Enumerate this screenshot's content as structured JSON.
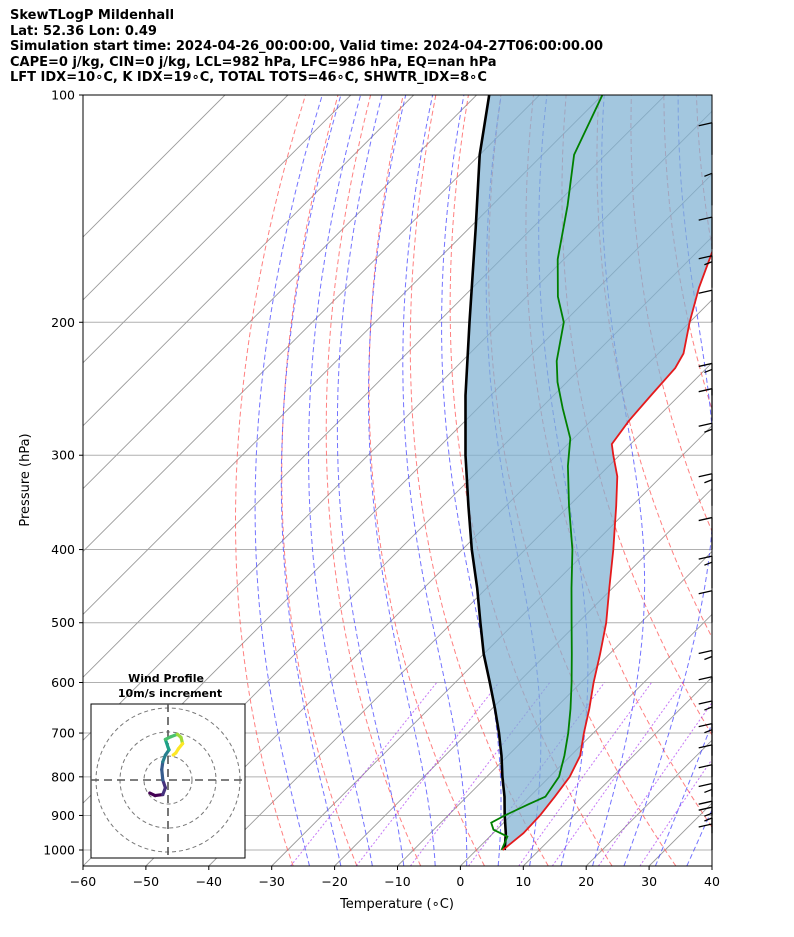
{
  "title": {
    "line1": "SkewTLogP Mildenhall",
    "line2": "Lat: 52.36   Lon: 0.49",
    "line3": "Simulation start time: 2024-04-26_00:00:00, Valid time: 2024-04-27T06:00:00.00",
    "line4": "CAPE=0 j/kg, CIN=0 j/kg, LCL=982 hPa, LFC=986 hPa, EQ=nan hPa",
    "line5": "LFT IDX=10∘C, K IDX=19∘C, TOTAL TOTS=46∘C, SHWTR_IDX=8∘C"
  },
  "colors": {
    "temperature": "#e41a1c",
    "dewpoint": "#008000",
    "parcel": "#000000",
    "shade": "#7fb1d3",
    "dry_adiabat": "#ff5555",
    "moist_adiabat": "#4444ff",
    "mixing_ratio": "#a020f0",
    "isotherm": "#9a9a9a"
  },
  "chart_data": {
    "type": "skew-t log-p",
    "title": "SkewTLogP Mildenhall",
    "xlabel": "Temperature (∘C)",
    "ylabel": "Pressure (hPa)",
    "xlim": [
      -60,
      40
    ],
    "ylim": [
      1050,
      100
    ],
    "x_ticks": [
      -60,
      -50,
      -40,
      -30,
      -20,
      -10,
      0,
      10,
      20,
      30,
      40
    ],
    "x_tick_labels": [
      "−60",
      "−50",
      "−40",
      "−30",
      "−20",
      "−10",
      "0",
      "10",
      "20",
      "30",
      "40"
    ],
    "y_ticks": [
      1000,
      900,
      800,
      700,
      600,
      500,
      400,
      300,
      200,
      100
    ],
    "y_tick_labels": [
      "1000",
      "900",
      "800",
      "700",
      "600",
      "500",
      "400",
      "300",
      "200",
      "100"
    ],
    "temperature_profile": [
      [
        1000,
        4.2
      ],
      [
        950,
        4.8
      ],
      [
        900,
        4.6
      ],
      [
        850,
        4.0
      ],
      [
        800,
        3.2
      ],
      [
        750,
        1.5
      ],
      [
        700,
        -1.5
      ],
      [
        650,
        -4.5
      ],
      [
        600,
        -8.0
      ],
      [
        550,
        -11.5
      ],
      [
        500,
        -15.5
      ],
      [
        450,
        -20.5
      ],
      [
        400,
        -26.0
      ],
      [
        350,
        -32.5
      ],
      [
        320,
        -37.0
      ],
      [
        300,
        -41.0
      ],
      [
        290,
        -43.0
      ],
      [
        270,
        -44.0
      ],
      [
        250,
        -44.5
      ],
      [
        230,
        -45.0
      ],
      [
        220,
        -46.0
      ],
      [
        200,
        -50.0
      ],
      [
        180,
        -54.0
      ],
      [
        150,
        -60.0
      ],
      [
        120,
        -64.0
      ],
      [
        100,
        -69.0
      ]
    ],
    "dewpoint_profile": [
      [
        1000,
        4.0
      ],
      [
        960,
        2.8
      ],
      [
        940,
        -0.5
      ],
      [
        920,
        -2.0
      ],
      [
        900,
        -1.0
      ],
      [
        870,
        1.0
      ],
      [
        850,
        2.5
      ],
      [
        800,
        1.5
      ],
      [
        750,
        -1.0
      ],
      [
        700,
        -4.0
      ],
      [
        650,
        -7.5
      ],
      [
        600,
        -11.5
      ],
      [
        550,
        -16.0
      ],
      [
        500,
        -21.0
      ],
      [
        450,
        -26.5
      ],
      [
        400,
        -32.5
      ],
      [
        350,
        -40.0
      ],
      [
        310,
        -46.5
      ],
      [
        285,
        -50.5
      ],
      [
        260,
        -56.5
      ],
      [
        240,
        -61.5
      ],
      [
        225,
        -65.0
      ],
      [
        200,
        -70.0
      ],
      [
        185,
        -75.0
      ],
      [
        165,
        -81.0
      ],
      [
        140,
        -88.0
      ],
      [
        120,
        -95.0
      ],
      [
        100,
        -100.0
      ]
    ],
    "parcel_profile": [
      [
        1000,
        4.5
      ],
      [
        950,
        2.0
      ],
      [
        900,
        -1.0
      ],
      [
        850,
        -4.0
      ],
      [
        800,
        -7.5
      ],
      [
        750,
        -11.0
      ],
      [
        700,
        -15.0
      ],
      [
        650,
        -19.5
      ],
      [
        600,
        -24.5
      ],
      [
        550,
        -30.0
      ],
      [
        500,
        -35.5
      ],
      [
        450,
        -41.5
      ],
      [
        400,
        -48.5
      ],
      [
        350,
        -56.0
      ],
      [
        300,
        -64.5
      ],
      [
        250,
        -74.0
      ],
      [
        200,
        -85.0
      ],
      [
        150,
        -99.0
      ],
      [
        120,
        -110.0
      ],
      [
        100,
        -118.0
      ]
    ],
    "wind_barbs": [
      {
        "p": 1000,
        "barb": "short-long"
      },
      {
        "p": 950,
        "barb": "long-long-short"
      },
      {
        "p": 900,
        "barb": "long-short"
      },
      {
        "p": 850,
        "barb": "long"
      },
      {
        "p": 800,
        "barb": "long"
      },
      {
        "p": 750,
        "barb": "long-short"
      },
      {
        "p": 700,
        "barb": "long-short"
      },
      {
        "p": 650,
        "barb": "long"
      },
      {
        "p": 600,
        "barb": "long-short"
      },
      {
        "p": 500,
        "barb": "long"
      },
      {
        "p": 450,
        "barb": "long-short"
      },
      {
        "p": 400,
        "barb": "long"
      },
      {
        "p": 350,
        "barb": "long-short"
      },
      {
        "p": 300,
        "barb": "long-short"
      },
      {
        "p": 270,
        "barb": "long"
      },
      {
        "p": 250,
        "barb": "long-short"
      },
      {
        "p": 200,
        "barb": "long"
      },
      {
        "p": 180,
        "barb": "long-short"
      },
      {
        "p": 160,
        "barb": "long"
      },
      {
        "p": 140,
        "barb": "short"
      },
      {
        "p": 120,
        "barb": "long"
      }
    ],
    "hodograph": {
      "title_line1": "Wind Profile",
      "title_line2": "10m/s increment",
      "ring_increment_ms": 10,
      "points": [
        [
          -3.5,
          -2.5
        ],
        [
          -2.5,
          -3.0
        ],
        [
          -1.0,
          -2.8
        ],
        [
          -0.5,
          -1.5
        ],
        [
          -1.0,
          0.0
        ],
        [
          -1.2,
          2.0
        ],
        [
          -1.0,
          3.5
        ],
        [
          -0.5,
          4.8
        ],
        [
          0.2,
          5.8
        ],
        [
          0.0,
          6.3
        ],
        [
          -0.5,
          7.8
        ],
        [
          0.5,
          8.3
        ],
        [
          1.8,
          8.8
        ],
        [
          2.5,
          8.2
        ],
        [
          2.8,
          7.0
        ],
        [
          2.0,
          6.0
        ],
        [
          1.5,
          5.2
        ],
        [
          1.0,
          4.8
        ]
      ]
    }
  }
}
